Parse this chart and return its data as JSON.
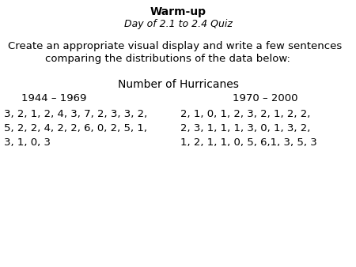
{
  "title_line1": "Warm-up",
  "title_line2": "Day of 2.1 to 2.4 Quiz",
  "subtitle_line1": "Create an appropriate visual display and write a few sentences",
  "subtitle_line2": "comparing the distributions of the data below:",
  "section_title": "Number of Hurricanes",
  "col1_header": "1944 – 1969",
  "col2_header": "1970 – 2000",
  "col1_line1": "3, 2, 1, 2, 4, 3, 7, 2, 3, 3, 2,",
  "col1_line2": "5, 2, 2, 4, 2, 2, 6, 0, 2, 5, 1,",
  "col1_line3": "3, 1, 0, 3",
  "col2_line1": "2, 1, 0, 1, 2, 3, 2, 1, 2, 2,",
  "col2_line2": "2, 3, 1, 1, 1, 3, 0, 1, 3, 2,",
  "col2_line3": "1, 2, 1, 1, 0, 5, 6,1, 3, 5, 3",
  "background_color": "#ffffff",
  "text_color": "#000000",
  "figwidth": 4.5,
  "figheight": 3.38,
  "dpi": 100
}
